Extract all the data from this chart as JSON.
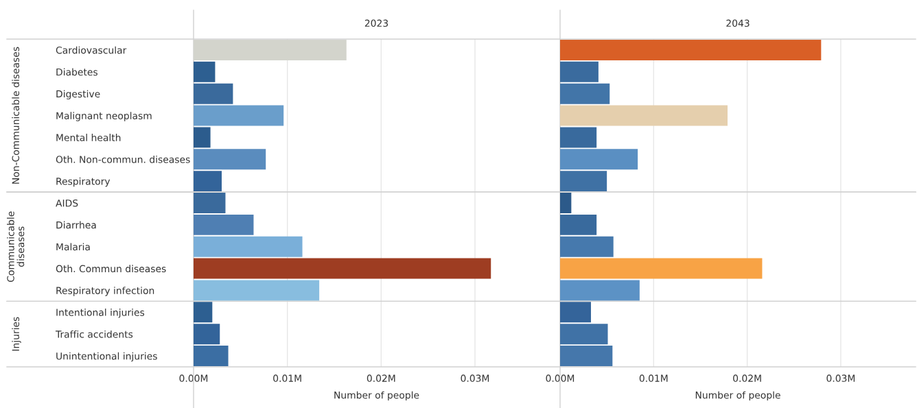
{
  "chart_data": [
    {
      "type": "bar",
      "orientation": "horizontal",
      "title": "2023",
      "ylabel": "Non-Communicable diseases",
      "grid": "x",
      "tick_labels": "y",
      "categories": [
        "Cardiovascular",
        "Diabetes",
        "Digestive",
        "Malignant neoplasm",
        "Mental health",
        "Oth. Non-commun. diseases",
        "Respiratory"
      ],
      "values": [
        0.0163,
        0.0023,
        0.0042,
        0.0096,
        0.0018,
        0.0077,
        0.003
      ],
      "colors": [
        "#d3d4cc",
        "#2d5f91",
        "#3a6a9c",
        "#6a9ecb",
        "#2c5c8d",
        "#5a8cbe",
        "#33649a"
      ],
      "xlim": [
        0,
        0.039
      ],
      "xticks": [
        {
          "value": 0,
          "label": null
        },
        {
          "value": 0.01,
          "label": null
        },
        {
          "value": 0.02,
          "label": null
        },
        {
          "value": 0.03,
          "label": null
        }
      ]
    },
    {
      "type": "bar",
      "orientation": "horizontal",
      "title": "2043",
      "grid": "x",
      "tick_labels": false,
      "categories": [
        null,
        null,
        null,
        null,
        null,
        null,
        null
      ],
      "values": [
        0.0279,
        0.0041,
        0.0053,
        0.0179,
        0.0039,
        0.0083,
        0.005
      ],
      "colors": [
        "#d95f26",
        "#3a6b9e",
        "#4275a8",
        "#e5cfad",
        "#396a9d",
        "#5a8fc2",
        "#3f71a4"
      ],
      "xlim": [
        0,
        0.038
      ],
      "xticks": [
        {
          "value": 0,
          "label": null
        },
        {
          "value": 0.01,
          "label": null
        },
        {
          "value": 0.02,
          "label": null
        },
        {
          "value": 0.03,
          "label": null
        }
      ]
    },
    {
      "type": "bar",
      "orientation": "horizontal",
      "ylabel": "Communicable diseases",
      "grid": "x",
      "tick_labels": "y",
      "categories": [
        "AIDS",
        "Diarrhea",
        "Malaria",
        "Oth. Commun diseases",
        "Respiratory infection"
      ],
      "values": [
        0.0034,
        0.0064,
        0.0116,
        0.0317,
        0.0134
      ],
      "colors": [
        "#3a6a9c",
        "#4f7fb3",
        "#7aafd9",
        "#9e3d22",
        "#88bddf"
      ],
      "xlim": [
        0,
        0.039
      ],
      "xticks": [
        {
          "value": 0,
          "label": null
        },
        {
          "value": 0.01,
          "label": null
        },
        {
          "value": 0.02,
          "label": null
        },
        {
          "value": 0.03,
          "label": null
        }
      ]
    },
    {
      "type": "bar",
      "orientation": "horizontal",
      "grid": "x",
      "tick_labels": false,
      "categories": [
        null,
        null,
        null,
        null,
        null
      ],
      "values": [
        0.0012,
        0.0039,
        0.0057,
        0.0216,
        0.0085
      ],
      "colors": [
        "#2c5a8a",
        "#396a9d",
        "#4679ad",
        "#f8a345",
        "#5c92c5"
      ],
      "xlim": [
        0,
        0.038
      ],
      "xticks": [
        {
          "value": 0,
          "label": null
        },
        {
          "value": 0.01,
          "label": null
        },
        {
          "value": 0.02,
          "label": null
        },
        {
          "value": 0.03,
          "label": null
        }
      ]
    },
    {
      "type": "bar",
      "orientation": "horizontal",
      "ylabel": "Injuries",
      "xlabel": "Number of people",
      "grid": "x",
      "categories": [
        "Intentional injuries",
        "Traffic accidents",
        "Unintentional injuries"
      ],
      "values": [
        0.002,
        0.0028,
        0.0037
      ],
      "colors": [
        "#2d5f91",
        "#33649a",
        "#3b6ea3"
      ],
      "xlim": [
        0,
        0.039
      ],
      "xticks": [
        {
          "value": 0,
          "label": "0.00M"
        },
        {
          "value": 0.01,
          "label": "0.01M"
        },
        {
          "value": 0.02,
          "label": "0.02M"
        },
        {
          "value": 0.03,
          "label": "0.03M"
        }
      ]
    },
    {
      "type": "bar",
      "orientation": "horizontal",
      "xlabel": "Number of people",
      "grid": "x",
      "tick_labels": "x",
      "categories": [
        null,
        null,
        null
      ],
      "values": [
        0.0033,
        0.0051,
        0.0056
      ],
      "colors": [
        "#34649a",
        "#4072a6",
        "#4577ab"
      ],
      "xlim": [
        0,
        0.038
      ],
      "xticks": [
        {
          "value": 0,
          "label": "0.00M"
        },
        {
          "value": 0.01,
          "label": "0.01M"
        },
        {
          "value": 0.02,
          "label": "0.02M"
        },
        {
          "value": 0.03,
          "label": "0.03M"
        }
      ]
    }
  ]
}
